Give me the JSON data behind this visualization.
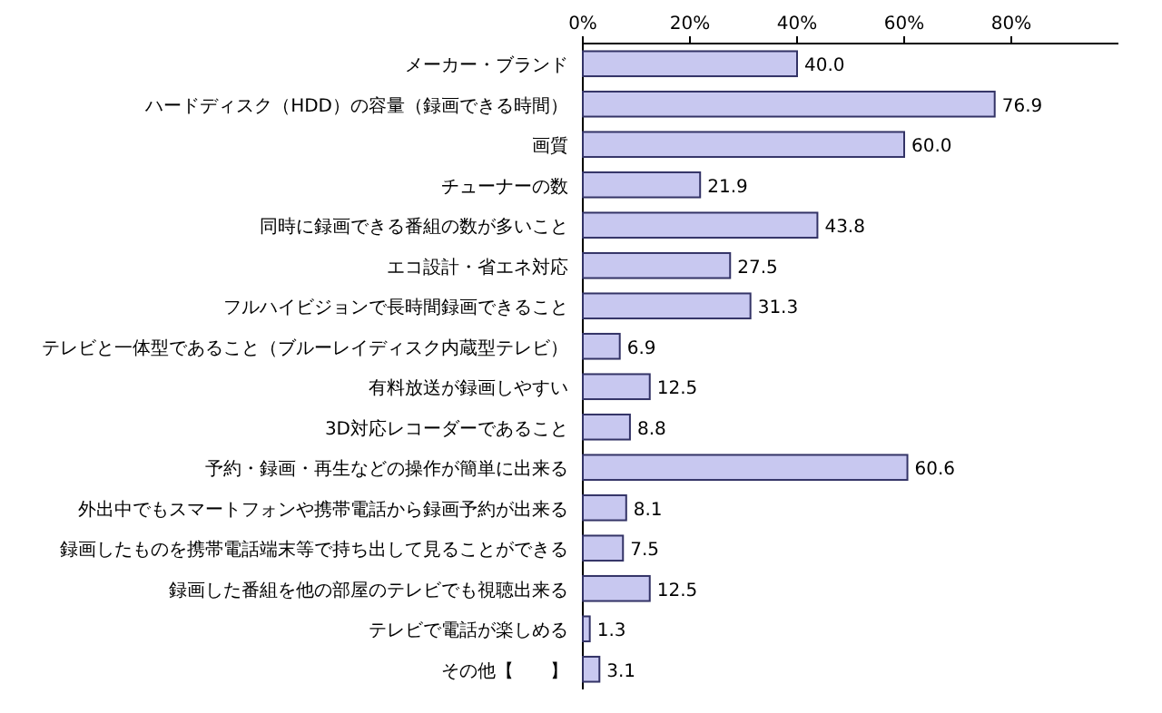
{
  "chart_data": {
    "type": "bar",
    "orientation": "horizontal",
    "categories": [
      "メーカー・ブランド",
      "ハードディスク（HDD）の容量（録画できる時間）",
      "画質",
      "チューナーの数",
      "同時に録画できる番組の数が多いこと",
      "エコ設計・省エネ対応",
      "フルハイビジョンで長時間録画できること",
      "テレビと一体型であること（ブルーレイディスク内蔵型テレビ）",
      "有料放送が録画しやすい",
      "3D対応レコーダーであること",
      "予約・録画・再生などの操作が簡単に出来る",
      "外出中でもスマートフォンや携帯電話から録画予約が出来る",
      "録画したものを携帯電話端末等で持ち出して見ることができる",
      "録画した番組を他の部屋のテレビでも視聴出来る",
      "テレビで電話が楽しめる",
      "その他【　　】"
    ],
    "values": [
      40.0,
      76.9,
      60.0,
      21.9,
      43.8,
      27.5,
      31.3,
      6.9,
      12.5,
      8.8,
      60.6,
      8.1,
      7.5,
      12.5,
      1.3,
      3.1
    ],
    "value_labels": [
      "40.0",
      "76.9",
      "60.0",
      "21.9",
      "43.8",
      "27.5",
      "31.3",
      "6.9",
      "12.5",
      "8.8",
      "60.6",
      "8.1",
      "7.5",
      "12.5",
      "1.3",
      "3.1"
    ],
    "color": "#c8c8f0",
    "xlim": [
      0,
      100
    ],
    "xticks": [
      {
        "value": 0,
        "label": "0%"
      },
      {
        "value": 20,
        "label": "20%"
      },
      {
        "value": 40,
        "label": "40%"
      },
      {
        "value": 60,
        "label": "60%"
      },
      {
        "value": 80,
        "label": "80%"
      }
    ],
    "grid": false
  }
}
